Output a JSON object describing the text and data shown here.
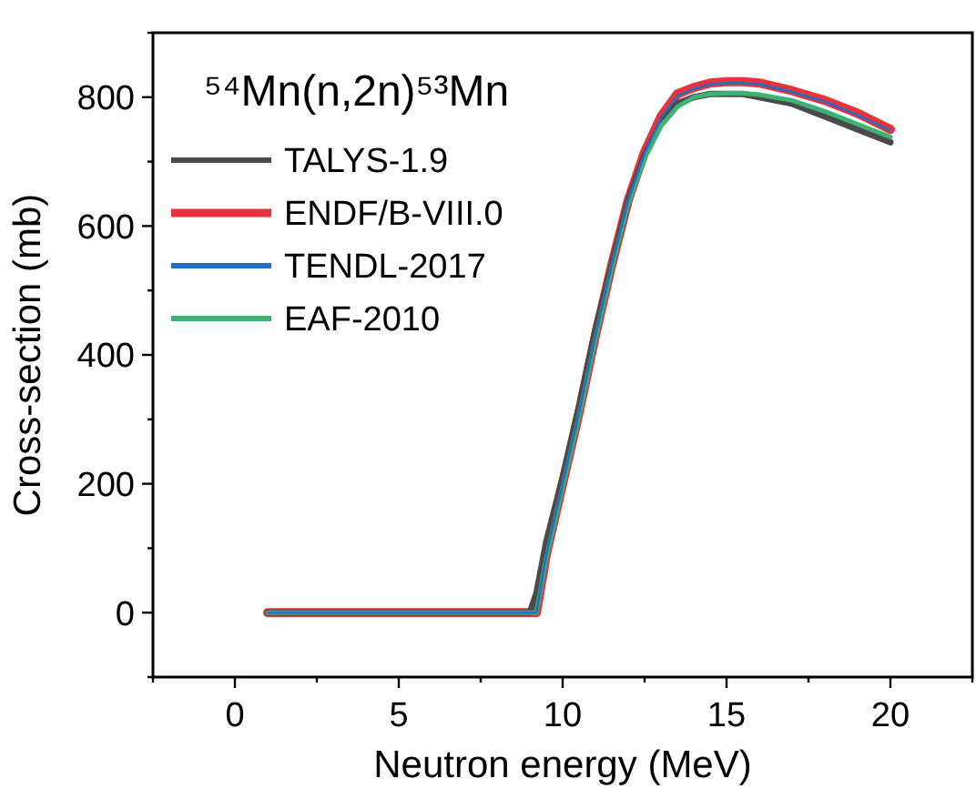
{
  "chart_data": {
    "type": "line",
    "title": "⁵⁴Mn(n,2n)⁵³Mn",
    "xlabel": "Neutron energy (MeV)",
    "ylabel": "Cross-section (mb)",
    "x": [
      1,
      9,
      9.2,
      9.5,
      10,
      10.5,
      11,
      11.5,
      12,
      12.5,
      13,
      13.5,
      14,
      14.5,
      15,
      15.5,
      16,
      17,
      18,
      19,
      20
    ],
    "series": [
      {
        "name": "TALYS-1.9",
        "color": "#4a4a4a",
        "values": [
          0,
          0,
          30,
          110,
          210,
          320,
          440,
          540,
          640,
          710,
          760,
          790,
          800,
          805,
          805,
          805,
          800,
          790,
          770,
          750,
          730
        ]
      },
      {
        "name": "ENDF/B-VIII.0",
        "color": "#e8323c",
        "values": [
          0,
          0,
          0,
          90,
          200,
          310,
          430,
          540,
          640,
          715,
          770,
          805,
          815,
          822,
          824,
          824,
          822,
          810,
          795,
          775,
          750
        ]
      },
      {
        "name": "TENDL-2017",
        "color": "#1f6fc4",
        "values": [
          0,
          0,
          0,
          90,
          200,
          310,
          430,
          540,
          640,
          713,
          768,
          802,
          813,
          820,
          822,
          822,
          820,
          808,
          793,
          772,
          748
        ]
      },
      {
        "name": "EAF-2010",
        "color": "#3cb371",
        "values": [
          0,
          0,
          0,
          85,
          195,
          305,
          425,
          535,
          635,
          705,
          755,
          785,
          800,
          805,
          806,
          806,
          804,
          795,
          778,
          758,
          738
        ]
      }
    ],
    "xlim": [
      -2.5,
      22.5
    ],
    "ylim": [
      -100,
      900
    ],
    "xticks": [
      {
        "value": -2.5,
        "label": null
      },
      0,
      {
        "value": 2.5,
        "label": null
      },
      5,
      {
        "value": 7.5,
        "label": null
      },
      10,
      {
        "value": 12.5,
        "label": null
      },
      15,
      {
        "value": 17.5,
        "label": null
      },
      20,
      {
        "value": 22.5,
        "label": null
      }
    ],
    "yticks": [
      {
        "value": -100,
        "label": null
      },
      0,
      {
        "value": 100,
        "label": null
      },
      200,
      {
        "value": 300,
        "label": null
      },
      400,
      {
        "value": 500,
        "label": null
      },
      600,
      {
        "value": 700,
        "label": null
      },
      800,
      {
        "value": 900,
        "label": null
      }
    ],
    "legend": "top left",
    "grid": false,
    "marker": "none",
    "line_style": "solid"
  }
}
